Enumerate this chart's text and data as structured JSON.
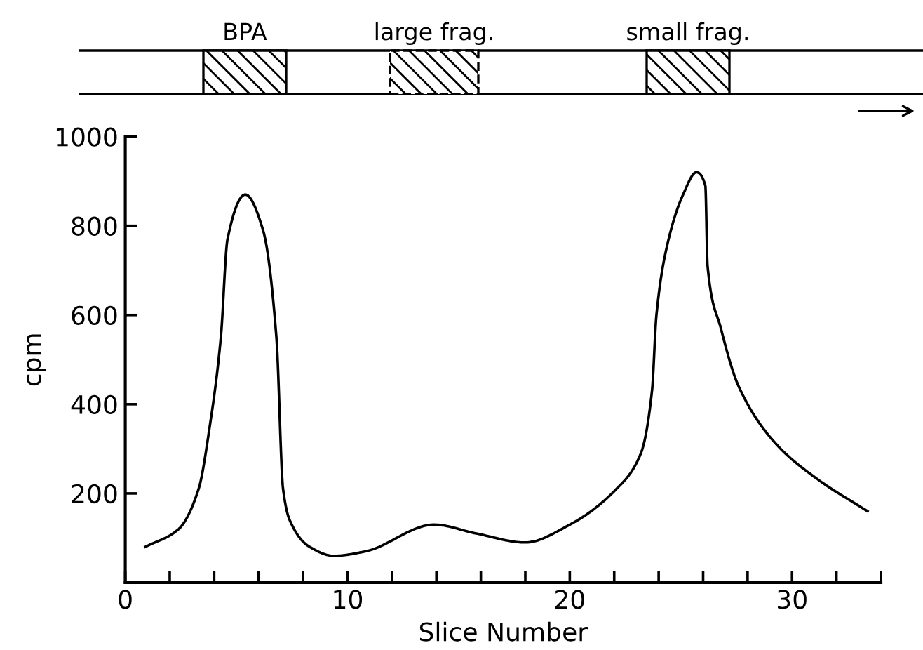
{
  "chart_data": {
    "type": "line",
    "xlabel": "Slice Number",
    "ylabel": "cpm",
    "color": "#000000",
    "x": [
      0.9,
      2.4,
      3.3,
      3.8,
      4.3,
      4.6,
      5.4,
      6.2,
      6.8,
      7.1,
      7.4,
      8.3,
      9.4,
      10.8,
      13.9,
      15.8,
      18.0,
      20.0,
      22.1,
      23.2,
      23.7,
      23.9,
      24.4,
      25.1,
      25.7,
      26.1,
      26.2,
      26.8,
      27.6,
      29.3,
      31.2,
      33.4
    ],
    "values": [
      80,
      120,
      210,
      350,
      550,
      770,
      870,
      790,
      550,
      210,
      140,
      80,
      60,
      70,
      130,
      110,
      90,
      130,
      210,
      290,
      430,
      600,
      760,
      870,
      920,
      890,
      710,
      570,
      440,
      310,
      230,
      160
    ],
    "xlim": [
      0,
      34
    ],
    "ylim": [
      0,
      1000
    ],
    "xticks": [
      0,
      {
        "value": 2,
        "label": null
      },
      {
        "value": 4,
        "label": null
      },
      {
        "value": 6,
        "label": null
      },
      {
        "value": 8,
        "label": null
      },
      10,
      {
        "value": 12,
        "label": null
      },
      {
        "value": 14,
        "label": null
      },
      {
        "value": 16,
        "label": null
      },
      {
        "value": 18,
        "label": null
      },
      20,
      {
        "value": 22,
        "label": null
      },
      {
        "value": 24,
        "label": null
      },
      {
        "value": 26,
        "label": null
      },
      {
        "value": 28,
        "label": null
      },
      30,
      {
        "value": 32,
        "label": null
      },
      {
        "value": 34,
        "label": null
      }
    ],
    "yticks": [
      200,
      400,
      600,
      800,
      1000
    ],
    "annotations": [
      "BPA",
      "large frag.",
      "small frag."
    ],
    "grid": false,
    "line_style": "solid",
    "marker": "none"
  }
}
